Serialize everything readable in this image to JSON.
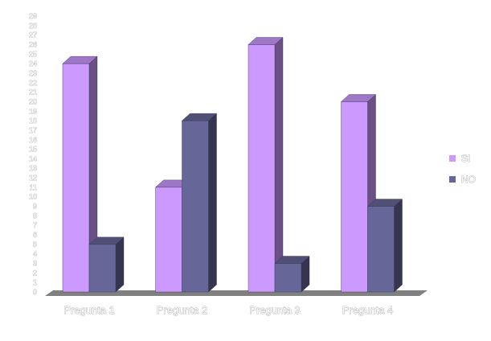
{
  "chart_data": {
    "type": "bar",
    "categories": [
      "Pregunta 1",
      "Pregunta 2",
      "Pregunta 3",
      "Pregunta 4"
    ],
    "series": [
      {
        "name": "SI",
        "values": [
          24,
          11,
          26,
          20
        ],
        "color": "#cc99ff"
      },
      {
        "name": "NO",
        "values": [
          5,
          18,
          3,
          9
        ],
        "color": "#666699"
      }
    ],
    "ylim": [
      0,
      29
    ],
    "yticks": [
      0,
      1,
      2,
      3,
      4,
      5,
      6,
      7,
      8,
      9,
      10,
      11,
      12,
      13,
      14,
      15,
      16,
      17,
      18,
      19,
      20,
      21,
      22,
      23,
      24,
      25,
      26,
      27,
      28,
      29
    ],
    "legend_position": "right",
    "grid": false,
    "three_d": true
  }
}
